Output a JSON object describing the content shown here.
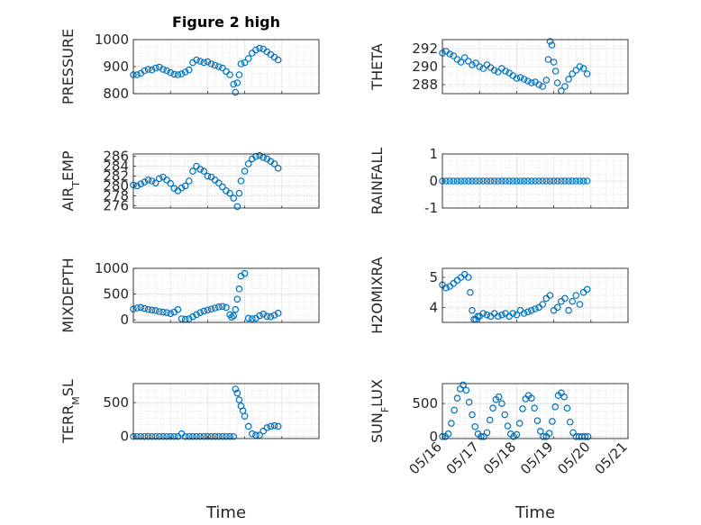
{
  "figure": {
    "title": "Figure 2 high",
    "xlabel": "Time",
    "marker_color": "#0072BD"
  },
  "chart_data": [
    {
      "type": "scatter",
      "ylabel": "PRESSURE",
      "ylim": [
        800,
        1000
      ],
      "yticks": [
        "800",
        "900",
        "1000"
      ],
      "x_ticks": [
        "05/16",
        "05/17",
        "05/18",
        "05/19",
        "05/20",
        "05/21"
      ],
      "x_tick_labels_shown": false,
      "x": [
        0.0,
        0.1,
        0.2,
        0.3,
        0.4,
        0.5,
        0.6,
        0.7,
        0.8,
        0.9,
        1.0,
        1.1,
        1.2,
        1.3,
        1.4,
        1.5,
        1.6,
        1.7,
        1.8,
        1.9,
        2.0,
        2.1,
        2.2,
        2.3,
        2.4,
        2.5,
        2.6,
        2.7,
        2.75,
        2.8,
        2.85,
        2.9,
        3.0,
        3.1,
        3.2,
        3.3,
        3.4,
        3.5,
        3.6,
        3.7,
        3.8,
        3.9
      ],
      "y": [
        870,
        870,
        875,
        885,
        890,
        888,
        895,
        898,
        890,
        885,
        878,
        872,
        870,
        873,
        880,
        888,
        915,
        925,
        920,
        915,
        918,
        910,
        905,
        900,
        895,
        882,
        870,
        835,
        805,
        840,
        870,
        910,
        915,
        930,
        950,
        962,
        968,
        965,
        955,
        945,
        935,
        925
      ]
    },
    {
      "type": "scatter",
      "ylabel": "THETA",
      "ylim": [
        287,
        293
      ],
      "yticks": [
        "288",
        "290",
        "292"
      ],
      "x_ticks": [
        "05/16",
        "05/17",
        "05/18",
        "05/19",
        "05/20",
        "05/21"
      ],
      "x_tick_labels_shown": false,
      "x": [
        0.0,
        0.1,
        0.2,
        0.3,
        0.4,
        0.5,
        0.6,
        0.7,
        0.8,
        0.9,
        1.0,
        1.1,
        1.2,
        1.3,
        1.4,
        1.5,
        1.6,
        1.7,
        1.8,
        1.9,
        2.0,
        2.1,
        2.2,
        2.3,
        2.4,
        2.5,
        2.6,
        2.7,
        2.8,
        2.85,
        2.9,
        2.95,
        3.0,
        3.05,
        3.1,
        3.2,
        3.3,
        3.4,
        3.5,
        3.6,
        3.7,
        3.8,
        3.9
      ],
      "y": [
        291.5,
        291.7,
        291.4,
        291.2,
        290.8,
        290.5,
        291.0,
        290.6,
        290.2,
        290.4,
        290.0,
        289.8,
        290.2,
        289.9,
        289.6,
        289.4,
        289.8,
        289.5,
        289.3,
        289.0,
        288.7,
        288.8,
        288.6,
        288.4,
        288.2,
        288.3,
        288.0,
        287.8,
        288.5,
        290.8,
        292.8,
        292.4,
        290.5,
        289.5,
        288.2,
        287.3,
        287.8,
        288.6,
        289.2,
        289.6,
        290.0,
        289.8,
        289.2
      ]
    },
    {
      "type": "scatter",
      "ylabel": "AIR_TEMP",
      "ylim": [
        275.5,
        286.5
      ],
      "yticks": [
        "276",
        "278",
        "280",
        "282",
        "284",
        "286"
      ],
      "x_ticks": [
        "05/16",
        "05/17",
        "05/18",
        "05/19",
        "05/20",
        "05/21"
      ],
      "x_tick_labels_shown": false,
      "x": [
        0.0,
        0.1,
        0.2,
        0.3,
        0.4,
        0.5,
        0.6,
        0.7,
        0.8,
        0.9,
        1.0,
        1.1,
        1.2,
        1.3,
        1.4,
        1.5,
        1.6,
        1.7,
        1.8,
        1.9,
        2.0,
        2.1,
        2.2,
        2.3,
        2.4,
        2.5,
        2.6,
        2.7,
        2.8,
        2.85,
        2.9,
        3.0,
        3.1,
        3.2,
        3.3,
        3.4,
        3.5,
        3.6,
        3.7,
        3.8,
        3.9
      ],
      "y": [
        280.2,
        280.0,
        280.4,
        280.8,
        281.2,
        281.0,
        280.6,
        281.5,
        281.8,
        281.2,
        280.5,
        279.5,
        279.0,
        279.6,
        280.0,
        281.0,
        283.0,
        284.0,
        283.4,
        283.0,
        282.0,
        281.8,
        281.2,
        280.6,
        279.8,
        279.0,
        278.5,
        277.5,
        275.8,
        278.5,
        281.0,
        283.0,
        284.5,
        285.5,
        286.0,
        286.2,
        285.8,
        285.5,
        285.0,
        284.5,
        283.6
      ]
    },
    {
      "type": "scatter",
      "ylabel": "RAINFALL",
      "ylim": [
        -1,
        1
      ],
      "yticks": [
        "-1",
        "0",
        "1"
      ],
      "x_ticks": [
        "05/16",
        "05/17",
        "05/18",
        "05/19",
        "05/20",
        "05/21"
      ],
      "x_tick_labels_shown": false,
      "x": [
        0.0,
        0.1,
        0.2,
        0.3,
        0.4,
        0.5,
        0.6,
        0.7,
        0.8,
        0.9,
        1.0,
        1.1,
        1.2,
        1.3,
        1.4,
        1.5,
        1.6,
        1.7,
        1.8,
        1.9,
        2.0,
        2.1,
        2.2,
        2.3,
        2.4,
        2.5,
        2.6,
        2.7,
        2.8,
        2.9,
        3.0,
        3.1,
        3.2,
        3.3,
        3.4,
        3.5,
        3.6,
        3.7,
        3.8,
        3.9
      ],
      "y": [
        0,
        0,
        0,
        0,
        0,
        0,
        0,
        0,
        0,
        0,
        0,
        0,
        0,
        0,
        0,
        0,
        0,
        0,
        0,
        0,
        0,
        0,
        0,
        0,
        0,
        0,
        0,
        0,
        0,
        0,
        0,
        0,
        0,
        0,
        0,
        0,
        0,
        0,
        0,
        0
      ]
    },
    {
      "type": "scatter",
      "ylabel": "MIXDEPTH",
      "ylim": [
        -50,
        1000
      ],
      "yticks": [
        "0",
        "500",
        "1000"
      ],
      "x_ticks": [
        "05/16",
        "05/17",
        "05/18",
        "05/19",
        "05/20",
        "05/21"
      ],
      "x_tick_labels_shown": false,
      "x": [
        0.0,
        0.1,
        0.2,
        0.3,
        0.4,
        0.5,
        0.6,
        0.7,
        0.8,
        0.9,
        1.0,
        1.1,
        1.2,
        1.3,
        1.4,
        1.5,
        1.6,
        1.7,
        1.8,
        1.9,
        2.0,
        2.1,
        2.2,
        2.3,
        2.4,
        2.5,
        2.6,
        2.65,
        2.7,
        2.75,
        2.8,
        2.85,
        2.9,
        3.0,
        3.1,
        3.2,
        3.3,
        3.4,
        3.5,
        3.6,
        3.7,
        3.8,
        3.9
      ],
      "y": [
        210,
        230,
        240,
        220,
        200,
        190,
        180,
        160,
        150,
        140,
        120,
        150,
        200,
        20,
        10,
        20,
        60,
        100,
        140,
        170,
        190,
        210,
        230,
        250,
        260,
        240,
        100,
        50,
        80,
        200,
        400,
        600,
        850,
        900,
        30,
        20,
        30,
        80,
        110,
        70,
        60,
        90,
        130
      ]
    },
    {
      "type": "scatter",
      "ylabel": "H2OMIXRA",
      "ylim": [
        3.5,
        5.3
      ],
      "yticks": [
        "4",
        "5"
      ],
      "x_ticks": [
        "05/16",
        "05/17",
        "05/18",
        "05/19",
        "05/20",
        "05/21"
      ],
      "x_tick_labels_shown": false,
      "x": [
        0.0,
        0.1,
        0.2,
        0.3,
        0.4,
        0.5,
        0.6,
        0.7,
        0.75,
        0.8,
        0.85,
        0.9,
        0.95,
        1.0,
        1.1,
        1.2,
        1.3,
        1.4,
        1.5,
        1.6,
        1.7,
        1.8,
        1.9,
        2.0,
        2.1,
        2.2,
        2.3,
        2.4,
        2.5,
        2.6,
        2.7,
        2.8,
        2.9,
        3.0,
        3.1,
        3.2,
        3.3,
        3.4,
        3.5,
        3.6,
        3.7,
        3.8,
        3.9
      ],
      "y": [
        4.75,
        4.65,
        4.7,
        4.8,
        4.9,
        5.0,
        5.1,
        5.0,
        4.5,
        3.9,
        3.6,
        3.6,
        3.7,
        3.7,
        3.8,
        3.75,
        3.7,
        3.8,
        3.7,
        3.75,
        3.8,
        3.7,
        3.8,
        3.75,
        3.9,
        3.8,
        3.85,
        3.9,
        3.95,
        4.0,
        4.1,
        4.3,
        4.4,
        3.9,
        4.0,
        4.2,
        4.3,
        3.9,
        4.2,
        4.4,
        4.1,
        4.5,
        4.6
      ]
    },
    {
      "type": "scatter",
      "ylabel": "TERR_MSL",
      "ylim": [
        -30,
        780
      ],
      "yticks": [
        "0",
        "500"
      ],
      "x_ticks": [
        "05/16",
        "05/17",
        "05/18",
        "05/19",
        "05/20",
        "05/21"
      ],
      "x_tick_labels_shown": false,
      "x": [
        0.0,
        0.1,
        0.2,
        0.3,
        0.4,
        0.5,
        0.6,
        0.7,
        0.8,
        0.9,
        1.0,
        1.1,
        1.2,
        1.3,
        1.4,
        1.5,
        1.6,
        1.7,
        1.8,
        1.9,
        2.0,
        2.1,
        2.2,
        2.3,
        2.4,
        2.5,
        2.6,
        2.7,
        2.75,
        2.8,
        2.85,
        2.9,
        2.95,
        3.0,
        3.1,
        3.2,
        3.3,
        3.4,
        3.5,
        3.6,
        3.7,
        3.8,
        3.9
      ],
      "y": [
        0,
        0,
        0,
        0,
        0,
        0,
        0,
        0,
        0,
        0,
        0,
        0,
        0,
        40,
        0,
        0,
        0,
        0,
        0,
        0,
        0,
        0,
        0,
        0,
        0,
        0,
        0,
        0,
        700,
        640,
        540,
        450,
        380,
        300,
        150,
        40,
        20,
        20,
        80,
        130,
        150,
        160,
        150
      ]
    },
    {
      "type": "scatter",
      "ylabel": "SUN_FLUX",
      "ylim": [
        -30,
        800
      ],
      "yticks": [
        "0",
        "500"
      ],
      "x_ticks": [
        "05/16",
        "05/17",
        "05/18",
        "05/19",
        "05/20",
        "05/21"
      ],
      "x_tick_labels_shown": true,
      "x": [
        0.0,
        0.08,
        0.16,
        0.24,
        0.32,
        0.4,
        0.48,
        0.56,
        0.64,
        0.72,
        0.8,
        0.88,
        0.96,
        1.04,
        1.12,
        1.2,
        1.28,
        1.36,
        1.44,
        1.52,
        1.6,
        1.68,
        1.76,
        1.84,
        1.92,
        2.0,
        2.08,
        2.16,
        2.24,
        2.32,
        2.4,
        2.48,
        2.56,
        2.64,
        2.72,
        2.8,
        2.88,
        2.96,
        3.04,
        3.12,
        3.2,
        3.28,
        3.36,
        3.44,
        3.52,
        3.6,
        3.68,
        3.76,
        3.84,
        3.92
      ],
      "y": [
        0,
        0,
        40,
        200,
        400,
        580,
        720,
        780,
        700,
        520,
        330,
        150,
        40,
        0,
        0,
        60,
        250,
        430,
        560,
        600,
        500,
        330,
        160,
        40,
        0,
        30,
        200,
        420,
        570,
        620,
        580,
        430,
        240,
        80,
        0,
        0,
        50,
        230,
        450,
        620,
        660,
        600,
        430,
        220,
        60,
        0,
        0,
        0,
        0,
        0
      ]
    }
  ]
}
